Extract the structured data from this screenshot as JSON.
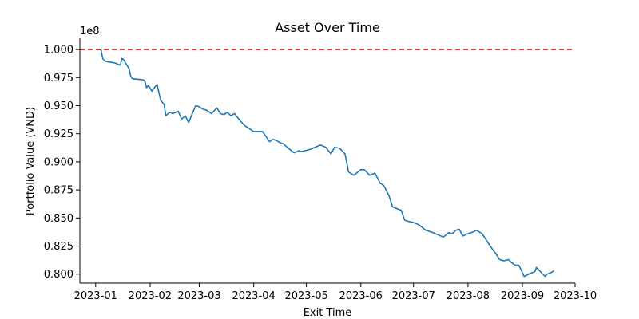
{
  "chart_data": {
    "type": "line",
    "title": "Asset Over Time",
    "xlabel": "Exit Time",
    "ylabel": "Portfolio Value (VND)",
    "y_offset_label": "1e8",
    "y_scale_factor": 100000000,
    "xlim": [
      "2022-12-23",
      "2023-10-01"
    ],
    "ylim": [
      0.792,
      1.01
    ],
    "x_ticks": [
      "2023-01-01",
      "2023-02-01",
      "2023-03-01",
      "2023-04-01",
      "2023-05-01",
      "2023-06-01",
      "2023-07-01",
      "2023-08-01",
      "2023-09-01",
      "2023-10-01"
    ],
    "x_tick_labels": [
      "2023-01",
      "2023-02",
      "2023-03",
      "2023-04",
      "2023-05",
      "2023-06",
      "2023-07",
      "2023-08",
      "2023-09",
      "2023-10"
    ],
    "y_ticks": [
      0.8,
      0.825,
      0.85,
      0.875,
      0.9,
      0.925,
      0.95,
      0.975,
      1.0
    ],
    "y_tick_labels": [
      "0.800",
      "0.825",
      "0.850",
      "0.875",
      "0.900",
      "0.925",
      "0.950",
      "0.975",
      "1.000"
    ],
    "grid": false,
    "reference_line": {
      "y": 1.0,
      "color": "#d62728",
      "style": "dashed"
    },
    "series": [
      {
        "color": "#1f77b4",
        "x": [
          "2023-01-04",
          "2023-01-05",
          "2023-01-06",
          "2023-01-08",
          "2023-01-12",
          "2023-01-15",
          "2023-01-16",
          "2023-01-17",
          "2023-01-18",
          "2023-01-20",
          "2023-01-21",
          "2023-01-22",
          "2023-01-28",
          "2023-01-29",
          "2023-01-30",
          "2023-01-31",
          "2023-02-02",
          "2023-02-05",
          "2023-02-07",
          "2023-02-09",
          "2023-02-10",
          "2023-02-12",
          "2023-02-14",
          "2023-02-17",
          "2023-02-19",
          "2023-02-21",
          "2023-02-23",
          "2023-02-25",
          "2023-02-27",
          "2023-03-01",
          "2023-03-03",
          "2023-03-05",
          "2023-03-08",
          "2023-03-11",
          "2023-03-13",
          "2023-03-15",
          "2023-03-17",
          "2023-03-19",
          "2023-03-21",
          "2023-03-24",
          "2023-03-27",
          "2023-03-30",
          "2023-04-01",
          "2023-04-03",
          "2023-04-06",
          "2023-04-10",
          "2023-04-12",
          "2023-04-14",
          "2023-04-16",
          "2023-04-18",
          "2023-04-20",
          "2023-04-24",
          "2023-04-27",
          "2023-04-28",
          "2023-05-03",
          "2023-05-06",
          "2023-05-09",
          "2023-05-12",
          "2023-05-15",
          "2023-05-17",
          "2023-05-20",
          "2023-05-23",
          "2023-05-25",
          "2023-05-26",
          "2023-05-28",
          "2023-06-01",
          "2023-06-03",
          "2023-06-06",
          "2023-06-09",
          "2023-06-12",
          "2023-06-14",
          "2023-06-17",
          "2023-06-19",
          "2023-06-22",
          "2023-06-24",
          "2023-06-26",
          "2023-06-28",
          "2023-07-01",
          "2023-07-04",
          "2023-07-08",
          "2023-07-12",
          "2023-07-18",
          "2023-07-21",
          "2023-07-23",
          "2023-07-25",
          "2023-07-27",
          "2023-07-29",
          "2023-08-01",
          "2023-08-03",
          "2023-08-06",
          "2023-08-09",
          "2023-08-12",
          "2023-08-15",
          "2023-08-17",
          "2023-08-19",
          "2023-08-21",
          "2023-08-22",
          "2023-08-24",
          "2023-08-26",
          "2023-08-28",
          "2023-08-30",
          "2023-09-02",
          "2023-09-06",
          "2023-09-08",
          "2023-09-09",
          "2023-09-12",
          "2023-09-14",
          "2023-09-15",
          "2023-09-17",
          "2023-09-19"
        ],
        "values": [
          1.0,
          0.992,
          0.99,
          0.989,
          0.988,
          0.986,
          0.992,
          0.991,
          0.988,
          0.983,
          0.976,
          0.974,
          0.973,
          0.972,
          0.966,
          0.968,
          0.963,
          0.969,
          0.955,
          0.951,
          0.941,
          0.944,
          0.943,
          0.945,
          0.938,
          0.941,
          0.935,
          0.943,
          0.95,
          0.949,
          0.947,
          0.946,
          0.943,
          0.948,
          0.943,
          0.942,
          0.944,
          0.941,
          0.943,
          0.937,
          0.932,
          0.929,
          0.927,
          0.927,
          0.927,
          0.918,
          0.92,
          0.919,
          0.917,
          0.916,
          0.913,
          0.908,
          0.91,
          0.909,
          0.911,
          0.913,
          0.915,
          0.913,
          0.907,
          0.913,
          0.912,
          0.907,
          0.891,
          0.89,
          0.888,
          0.893,
          0.893,
          0.888,
          0.89,
          0.881,
          0.879,
          0.87,
          0.86,
          0.858,
          0.857,
          0.848,
          0.847,
          0.846,
          0.844,
          0.839,
          0.837,
          0.833,
          0.837,
          0.836,
          0.839,
          0.84,
          0.834,
          0.836,
          0.837,
          0.839,
          0.836,
          0.829,
          0.822,
          0.818,
          0.813,
          0.812,
          0.812,
          0.813,
          0.81,
          0.808,
          0.808,
          0.798,
          0.801,
          0.802,
          0.806,
          0.801,
          0.798,
          0.8,
          0.801,
          0.803
        ]
      }
    ]
  }
}
